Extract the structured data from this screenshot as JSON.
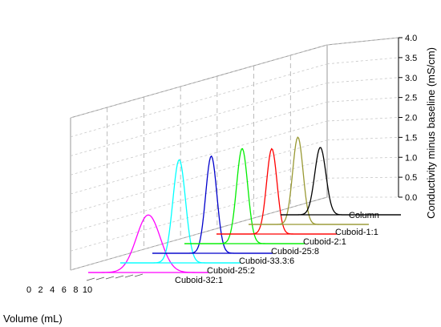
{
  "chart_data": {
    "type": "line",
    "subtype": "3d-waterfall",
    "xlabel": "Volume (mL)",
    "ylabel": "Conductivity minus baseline (mS/cm)",
    "x_ticks": [
      "0",
      "2",
      "4",
      "6",
      "8",
      "10"
    ],
    "y_ticks": [
      "0.0",
      "0.5",
      "1.0",
      "1.5",
      "2.0",
      "2.5",
      "3.0",
      "3.5",
      "4.0"
    ],
    "ylim": [
      0,
      4
    ],
    "z_axis_label": "Column",
    "grid": true,
    "series": [
      {
        "name": "Cuboid-32:1",
        "color": "#ff00ff",
        "peak_height": 1.45,
        "peak_volume": 5.0,
        "width": 1.6
      },
      {
        "name": "Cuboid-25:2",
        "color": "#00ffff",
        "peak_height": 2.6,
        "peak_volume": 4.9,
        "width": 0.85
      },
      {
        "name": "Cuboid-33.3:6",
        "color": "#0000cc",
        "peak_height": 2.45,
        "peak_volume": 4.9,
        "width": 0.75
      },
      {
        "name": "Cuboid-25:8",
        "color": "#00ee00",
        "peak_height": 2.4,
        "peak_volume": 4.8,
        "width": 0.75
      },
      {
        "name": "Cuboid-2:1",
        "color": "#ff0000",
        "peak_height": 2.15,
        "peak_volume": 4.6,
        "width": 0.7
      },
      {
        "name": "Cuboid-1:1",
        "color": "#999933",
        "peak_height": 2.2,
        "peak_volume": 4.1,
        "width": 0.7
      },
      {
        "name": "Column",
        "color": "#000000",
        "peak_height": 1.7,
        "peak_volume": 3.3,
        "width": 0.75
      }
    ]
  }
}
